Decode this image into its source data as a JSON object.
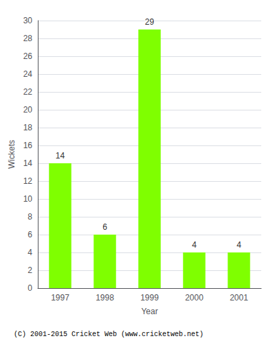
{
  "chart_data": {
    "type": "bar",
    "categories": [
      "1997",
      "1998",
      "1999",
      "2000",
      "2001"
    ],
    "values": [
      14,
      6,
      29,
      4,
      4
    ],
    "color": "#7fff00",
    "xlabel": "Year",
    "ylabel": "Wickets",
    "ylim": [
      0,
      30
    ],
    "yticks": [
      0,
      2,
      4,
      6,
      8,
      10,
      12,
      14,
      16,
      18,
      20,
      22,
      24,
      26,
      28,
      30
    ],
    "grid": true,
    "data_labels": true,
    "annotations": [
      "(C) 2001-2015 Cricket Web (www.cricketweb.net)"
    ]
  }
}
